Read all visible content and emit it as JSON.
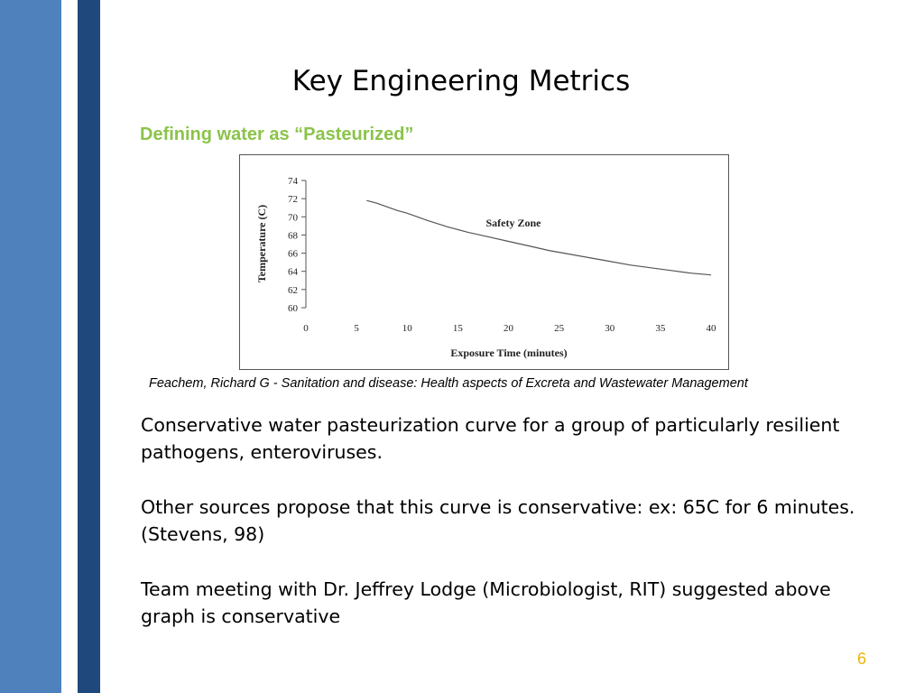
{
  "slide": {
    "title": "Key Engineering Metrics",
    "subtitle": "Defining water as “Pasteurized”",
    "citation": "Feachem, Richard G - Sanitation and disease: Health aspects of Excreta and Wastewater Management",
    "paragraphs": [
      "Conservative water pasteurization curve for a group of particularly resilient pathogens, enteroviruses.",
      "Other sources propose that this curve is conservative:  ex: 65C for 6 minutes.  (Stevens, 98)",
      "Team meeting with Dr. Jeffrey Lodge (Microbiologist, RIT) suggested above graph is conservative"
    ],
    "slide_number": "6",
    "colors": {
      "band_light": "#4f81bd",
      "band_dark": "#1f497d",
      "subtitle": "#8bc34a",
      "slide_number": "#f0b400"
    }
  },
  "chart_data": {
    "type": "line",
    "title": "",
    "xlabel": "Exposure Time (minutes)",
    "ylabel": "Temperature (C)",
    "xlim": [
      0,
      40
    ],
    "ylim": [
      60,
      74
    ],
    "x_ticks": [
      0,
      5,
      10,
      15,
      20,
      25,
      30,
      35,
      40
    ],
    "y_ticks": [
      60,
      62,
      64,
      66,
      68,
      70,
      72,
      74
    ],
    "grid": false,
    "annotation": "Safety Zone",
    "series": [
      {
        "x": [
          6,
          7,
          8,
          9,
          10,
          12,
          14,
          16,
          18,
          20,
          22,
          24,
          26,
          28,
          30,
          32,
          34,
          36,
          38,
          40
        ],
        "y": [
          71.8,
          71.5,
          71.1,
          70.7,
          70.4,
          69.6,
          68.9,
          68.3,
          67.8,
          67.3,
          66.8,
          66.3,
          65.9,
          65.5,
          65.1,
          64.7,
          64.4,
          64.1,
          63.8,
          63.6
        ]
      }
    ]
  }
}
